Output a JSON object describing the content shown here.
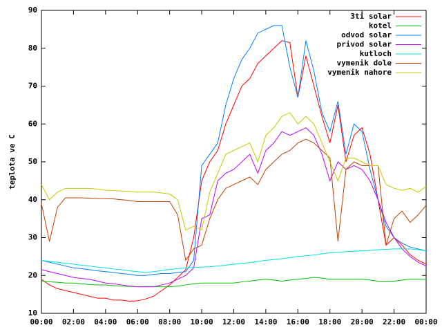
{
  "chart_data": {
    "type": "line",
    "y_label": "teplota ve C",
    "xlim": [
      0,
      24
    ],
    "ylim": [
      10,
      90
    ],
    "yticks": [
      10,
      20,
      30,
      40,
      50,
      60,
      70,
      80,
      90
    ],
    "xticks": [
      {
        "value": 0,
        "label": "00:00"
      },
      {
        "value": 2,
        "label": "02:00"
      },
      {
        "value": 4,
        "label": "04:00"
      },
      {
        "value": 6,
        "label": "06:00"
      },
      {
        "value": 8,
        "label": "08:00"
      },
      {
        "value": 10,
        "label": "10:00"
      },
      {
        "value": 12,
        "label": "12:00"
      },
      {
        "value": 14,
        "label": "14:00"
      },
      {
        "value": 16,
        "label": "16:00"
      },
      {
        "value": 18,
        "label": "18:00"
      },
      {
        "value": 20,
        "label": "20:00"
      },
      {
        "value": 22,
        "label": "22:00"
      },
      {
        "value": 24,
        "label": "00:00"
      }
    ],
    "legend": "upper right",
    "x": [
      0,
      0.5,
      1,
      1.5,
      2,
      2.5,
      3,
      3.5,
      4,
      4.5,
      5,
      5.5,
      6,
      6.5,
      7,
      7.5,
      8,
      8.5,
      9,
      9.5,
      10,
      10.5,
      11,
      11.5,
      12,
      12.5,
      13,
      13.5,
      14,
      14.5,
      15,
      15.5,
      16,
      16.5,
      17,
      17.5,
      18,
      18.5,
      19,
      19.5,
      20,
      20.5,
      21,
      21.5,
      22,
      22.5,
      23,
      23.5,
      24
    ],
    "series": [
      {
        "name": "3ti solar",
        "color": "#ff0000",
        "values": [
          19,
          17.5,
          16.5,
          16,
          15.5,
          15,
          14.5,
          14,
          14,
          13.5,
          13.5,
          13.2,
          13.3,
          13.8,
          14.5,
          16,
          17.5,
          19.5,
          21.5,
          30,
          45,
          50,
          53,
          60,
          65,
          70,
          72,
          76,
          78,
          80,
          82,
          81.5,
          67,
          78,
          70,
          62,
          55,
          65,
          50,
          57,
          59,
          52,
          40,
          28,
          30,
          28,
          25.5,
          24,
          23
        ]
      },
      {
        "name": "kotel",
        "color": "#00c000",
        "values": [
          18.5,
          18.3,
          18.2,
          18,
          18,
          17.8,
          17.6,
          17.5,
          17.5,
          17.3,
          17.2,
          17.1,
          17,
          17,
          17,
          17,
          17,
          17.2,
          17.5,
          17.8,
          18,
          18,
          18,
          18,
          18,
          18.3,
          18.5,
          18.8,
          19,
          18.8,
          18.5,
          18.8,
          19,
          19.2,
          19.5,
          19.3,
          19,
          19,
          19,
          19,
          19,
          18.8,
          18.5,
          18.5,
          18.5,
          18.8,
          19,
          19,
          19
        ]
      },
      {
        "name": "odvod solar",
        "color": "#0080ff",
        "values": [
          24,
          23.5,
          23,
          22.5,
          22,
          21.8,
          21.5,
          21.2,
          21,
          20.8,
          20.5,
          20.3,
          20,
          20,
          20.3,
          20.5,
          20.5,
          20.8,
          21,
          24,
          49,
          52,
          55,
          65,
          72,
          77,
          80,
          84,
          85,
          86,
          86,
          75,
          67,
          82,
          74,
          63,
          58,
          66,
          52,
          60,
          58,
          48,
          40,
          33,
          30,
          28.5,
          27.5,
          27,
          26.5
        ]
      },
      {
        "name": "privod solar",
        "color": "#c000ff",
        "values": [
          21.5,
          21,
          20.5,
          20,
          19.5,
          19.2,
          19,
          18.5,
          18,
          17.8,
          17.5,
          17.2,
          17,
          17,
          17,
          17.5,
          18,
          19,
          20,
          22,
          35,
          36,
          45,
          47,
          48,
          50,
          52,
          47,
          53,
          55,
          58,
          57,
          58,
          59,
          57,
          52,
          45,
          50,
          48,
          49,
          48,
          45,
          40,
          34,
          30,
          27,
          25,
          23.5,
          22.5
        ]
      },
      {
        "name": "kutloch",
        "color": "#00e0e0",
        "values": [
          24,
          23.7,
          23.5,
          23.2,
          23,
          22.7,
          22.5,
          22.2,
          22,
          21.7,
          21.5,
          21.2,
          21,
          20.8,
          21,
          21.3,
          21.6,
          21.8,
          22,
          22.1,
          22.2,
          22.3,
          22.5,
          22.7,
          23,
          23.2,
          23.4,
          23.7,
          24,
          24.2,
          24.4,
          24.7,
          25,
          25.2,
          25.4,
          25.7,
          26,
          26.1,
          26.3,
          26.4,
          26.5,
          26.6,
          26.8,
          26.9,
          27,
          27,
          27,
          26.8,
          26.5
        ]
      },
      {
        "name": "vymenik dole",
        "color": "#c04000",
        "values": [
          39,
          29,
          38,
          40.5,
          40.5,
          40.5,
          40.4,
          40.3,
          40.3,
          40.2,
          40,
          39.8,
          39.5,
          39.5,
          39.5,
          39.5,
          39.5,
          36,
          24,
          27,
          28,
          35,
          40,
          43,
          44,
          45,
          46,
          44,
          48,
          50,
          52,
          53,
          55,
          56,
          55,
          53,
          51,
          29,
          48,
          50,
          49,
          49,
          49,
          28,
          35,
          37,
          34,
          36,
          38.5
        ]
      },
      {
        "name": "vymenik nahore",
        "color": "#c8c800",
        "values": [
          44,
          40,
          42,
          43,
          43,
          43,
          43,
          42.8,
          42.5,
          42.4,
          42.3,
          42.2,
          42,
          42,
          42,
          41.8,
          41.5,
          40,
          32,
          33,
          32,
          42,
          47,
          52,
          53,
          54,
          55,
          50,
          57,
          59,
          62,
          63,
          60,
          62,
          60,
          55,
          50,
          45,
          51,
          51,
          50,
          49,
          49,
          44,
          43,
          42.5,
          43,
          42,
          43.5
        ]
      }
    ]
  }
}
